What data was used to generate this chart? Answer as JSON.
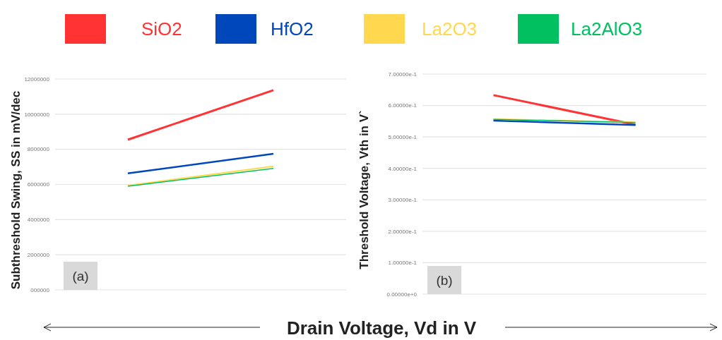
{
  "chart_data": [
    {
      "type": "line",
      "ylabel": "Subthreshold  Swing, SS in mV/dec",
      "xlabel": "Drain Voltage, Vd in V",
      "categories": [
        null,
        null
      ],
      "legend": "top",
      "grid": "y",
      "annotations": [
        "(a)"
      ],
      "ylim": [
        0,
        12000000
      ],
      "yticks": [
        {
          "value": 0,
          "label": "000000"
        },
        2000000,
        4000000,
        6000000,
        8000000,
        10000000,
        12000000
      ],
      "series": [
        {
          "name": "SiO2",
          "color": "#ff3333",
          "values": [
            8550000,
            11360000
          ]
        },
        {
          "name": "HfO2",
          "color": "#0047bb",
          "values": [
            6630000,
            7750000
          ]
        },
        {
          "name": "La2O3",
          "color": "#ffd850",
          "values": [
            5940000,
            7030000
          ]
        },
        {
          "name": "La2AlO3",
          "color": "#00c060",
          "values": [
            5900000,
            6910000
          ]
        }
      ]
    },
    {
      "type": "line",
      "ylabel": "Threshold  Voltage,  Vth in V`",
      "categories": [
        null,
        null
      ],
      "grid": "y",
      "annotations": [
        "(b)"
      ],
      "ylim": [
        0,
        0.7
      ],
      "yticks": [
        {
          "value": 0,
          "label": "0.00000e+0"
        },
        {
          "value": 0.1,
          "label": "1.00000e-1"
        },
        {
          "value": 0.2,
          "label": "2.00000e-1"
        },
        {
          "value": 0.3,
          "label": "3.00000e-1"
        },
        {
          "value": 0.4,
          "label": "4.00000e-1"
        },
        {
          "value": 0.5,
          "label": "5.00000e-1"
        },
        {
          "value": 0.6,
          "label": "6.00000e-1"
        },
        {
          "value": 0.7,
          "label": "7.00000e-1"
        }
      ],
      "series": [
        {
          "color": "#ff3333",
          "values": [
            0.633,
            0.539
          ]
        },
        {
          "color": "#0047bb",
          "values": [
            0.552,
            0.538
          ]
        },
        {
          "color": "#ffd850",
          "values": [
            0.557,
            0.547
          ]
        },
        {
          "color": "#00c060",
          "values": [
            0.556,
            0.546
          ]
        }
      ]
    }
  ]
}
